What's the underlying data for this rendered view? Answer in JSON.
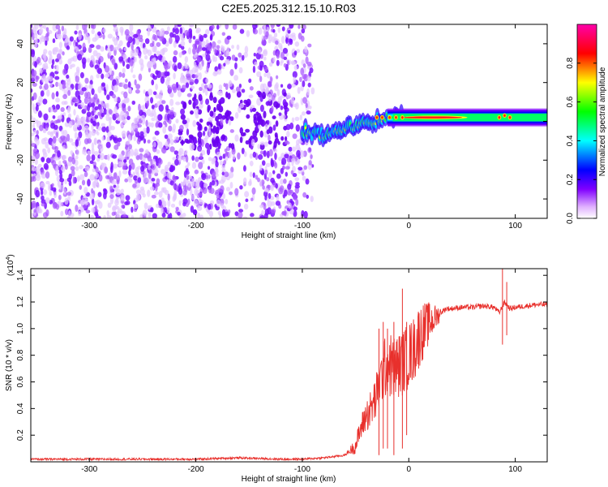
{
  "title": "C2E5.2025.312.15.10.R03",
  "chart_data": [
    {
      "type": "heatmap",
      "xlabel": "Height of straight line (km)",
      "ylabel": "Frequency (Hz)",
      "xlim": [
        -355,
        130
      ],
      "ylim": [
        -50,
        50
      ],
      "xticks": [
        -300,
        -200,
        -100,
        0,
        100
      ],
      "yticks": [
        -40,
        -20,
        0,
        20,
        40
      ],
      "colorbar": {
        "label": "Normalized spectral amplitude",
        "range": [
          0,
          1
        ],
        "ticks": [
          "0.0",
          "0.2",
          "0.4",
          "0.6",
          "0.8"
        ],
        "colormap": [
          "#ffffff",
          "#e0b0ff",
          "#8000ff",
          "#0000ff",
          "#00ffff",
          "#00ff00",
          "#ffff00",
          "#ff0000",
          "#ff00aa"
        ]
      },
      "ridge": {
        "description_points": [
          [
            -100,
            -5
          ],
          [
            -80,
            -7
          ],
          [
            -60,
            -4
          ],
          [
            -40,
            -1
          ],
          [
            -20,
            2
          ],
          [
            0,
            2
          ],
          [
            50,
            2
          ],
          [
            100,
            3
          ],
          [
            130,
            3
          ]
        ],
        "noise_region_x": [
          -355,
          -90
        ]
      }
    },
    {
      "type": "line",
      "xlabel": "Height of straight line (km)",
      "ylabel": "SNR (10 * v/v)",
      "y_multiplier": "(x10",
      "y_multiplier_exp": "4",
      "xlim": [
        -355,
        130
      ],
      "ylim": [
        0,
        1.45
      ],
      "xticks": [
        -300,
        -200,
        -100,
        0,
        100
      ],
      "yticks": [
        "0.2",
        "0.4",
        "0.6",
        "0.8",
        "1.0",
        "1.2",
        "1.4"
      ],
      "series": [
        {
          "color": "#e8302c",
          "x": [
            -355,
            -300,
            -250,
            -200,
            -160,
            -120,
            -100,
            -80,
            -60,
            -50,
            -45,
            -40,
            -35,
            -30,
            -25,
            -20,
            -15,
            -10,
            -5,
            0,
            5,
            10,
            15,
            20,
            25,
            30,
            35,
            40,
            50,
            60,
            70,
            80,
            85,
            90,
            95,
            100,
            110,
            120,
            130
          ],
          "y": [
            0.02,
            0.02,
            0.02,
            0.02,
            0.03,
            0.02,
            0.02,
            0.03,
            0.05,
            0.12,
            0.25,
            0.35,
            0.4,
            0.5,
            0.65,
            0.75,
            0.7,
            0.72,
            0.75,
            0.8,
            0.85,
            0.95,
            1.0,
            1.05,
            1.08,
            1.12,
            1.15,
            1.15,
            1.16,
            1.16,
            1.17,
            1.16,
            1.12,
            1.2,
            1.15,
            1.16,
            1.17,
            1.18,
            1.18
          ],
          "spikes": [
            [
              -28,
              0.05,
              1.0
            ],
            [
              -24,
              0.1,
              1.05
            ],
            [
              -20,
              0.1,
              1.0
            ],
            [
              -14,
              0.05,
              1.05
            ],
            [
              -6,
              0.1,
              1.3
            ],
            [
              -2,
              0.2,
              1.05
            ],
            [
              88,
              0.88,
              1.45
            ],
            [
              92,
              0.95,
              1.35
            ]
          ]
        }
      ]
    }
  ]
}
